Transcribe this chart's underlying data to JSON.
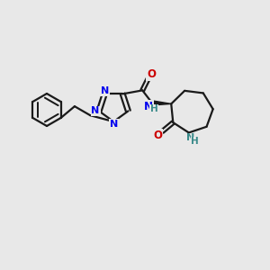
{
  "bg_color": "#e8e8e8",
  "bond_color": "#1a1a1a",
  "n_color": "#0000ee",
  "o_color": "#cc0000",
  "nh_color": "#3a8a8a",
  "line_width": 1.6,
  "figsize": [
    3.0,
    3.0
  ],
  "dpi": 100,
  "xlim": [
    0,
    300
  ],
  "ylim": [
    0,
    300
  ]
}
